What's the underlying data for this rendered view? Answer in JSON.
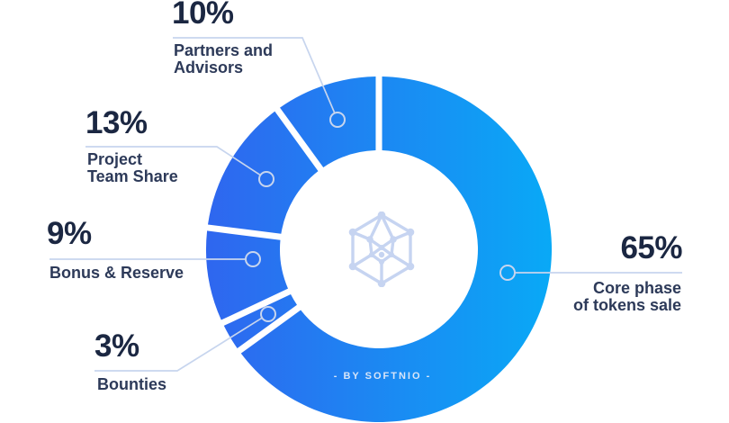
{
  "chart_data": {
    "type": "pie",
    "variant": "donut",
    "title": "",
    "caption": "- BY SOFTNIO -",
    "legend_position": "callouts",
    "start_angle_deg": 0,
    "direction": "clockwise",
    "center_icon": "hexagon-network-icon",
    "segments": [
      {
        "label": "Core phase of tokens sale",
        "label_display": "Core phase\nof tokens sale",
        "value": 65,
        "pct_label": "65%"
      },
      {
        "label": "Bounties",
        "label_display": "Bounties",
        "value": 3,
        "pct_label": "3%"
      },
      {
        "label": "Bonus & Reserve",
        "label_display": "Bonus & Reserve",
        "value": 9,
        "pct_label": "9%"
      },
      {
        "label": "Project Team Share",
        "label_display": "Project\nTeam Share",
        "value": 13,
        "pct_label": "13%"
      },
      {
        "label": "Partners and Advisors",
        "label_display": "Partners and\nAdvisors",
        "value": 10,
        "pct_label": "10%"
      }
    ],
    "colors": {
      "ring_gradient_start": "#2f66ef",
      "ring_gradient_end": "#09a9f6",
      "leader_line": "#c7d5ee",
      "percent_text": "#1b2742",
      "label_text": "#2d3a59",
      "center_icon": "#c6d4f1",
      "caption_text": "#d8e5f8",
      "background": "#ffffff"
    }
  }
}
